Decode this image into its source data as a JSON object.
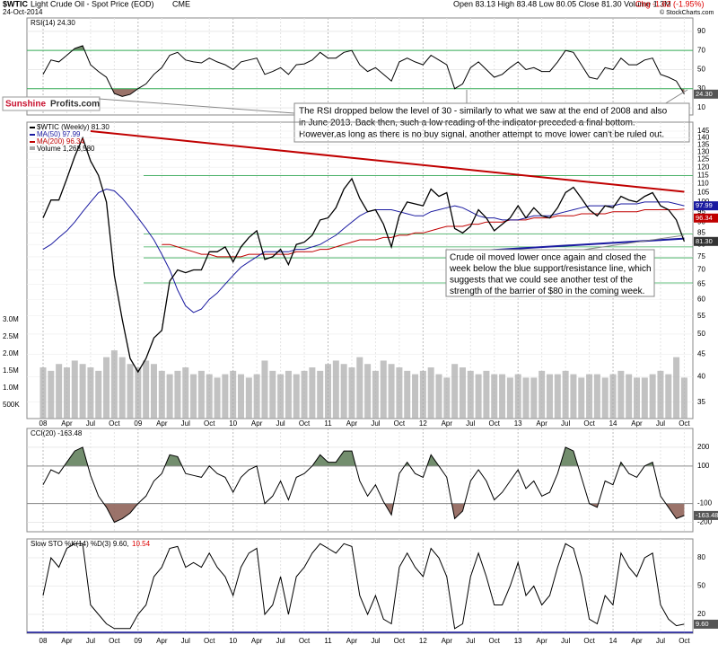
{
  "header": {
    "symbol": "$WTIC",
    "name": "Light Crude Oil - Spot Price (EOD)",
    "exchange": "CME",
    "date": "24-Oct-2014",
    "copyright": "© StockCharts.com",
    "quote": "Open 83.13  High 83.48  Low 80.05  Close 81.30  Volume 1.3M",
    "change": "Chg -1.62 (-1.95%)"
  },
  "logo": {
    "part1": "Sunshine",
    "part2": "Profits.com"
  },
  "x": [
    "2008-01",
    "2008-02",
    "2008-03",
    "2008-04",
    "2008-05",
    "2008-06",
    "2008-07",
    "2008-08",
    "2008-09",
    "2008-10",
    "2008-11",
    "2008-12",
    "2009-01",
    "2009-02",
    "2009-03",
    "2009-04",
    "2009-05",
    "2009-06",
    "2009-07",
    "2009-08",
    "2009-09",
    "2009-10",
    "2009-11",
    "2009-12",
    "2010-01",
    "2010-02",
    "2010-03",
    "2010-04",
    "2010-05",
    "2010-06",
    "2010-07",
    "2010-08",
    "2010-09",
    "2010-10",
    "2010-11",
    "2010-12",
    "2011-01",
    "2011-02",
    "2011-03",
    "2011-04",
    "2011-05",
    "2011-06",
    "2011-07",
    "2011-08",
    "2011-09",
    "2011-10",
    "2011-11",
    "2011-12",
    "2012-01",
    "2012-02",
    "2012-03",
    "2012-04",
    "2012-05",
    "2012-06",
    "2012-07",
    "2012-08",
    "2012-09",
    "2012-10",
    "2012-11",
    "2012-12",
    "2013-01",
    "2013-02",
    "2013-03",
    "2013-04",
    "2013-05",
    "2013-06",
    "2013-07",
    "2013-08",
    "2013-09",
    "2013-10",
    "2013-11",
    "2013-12",
    "2014-01",
    "2014-02",
    "2014-03",
    "2014-04",
    "2014-05",
    "2014-06",
    "2014-07",
    "2014-08",
    "2014-09",
    "2014-10"
  ],
  "x_axis_labels": [
    "08",
    "Apr",
    "Jul",
    "Oct",
    "09",
    "Apr",
    "Jul",
    "Oct",
    "10",
    "Apr",
    "Jul",
    "Oct",
    "11",
    "Apr",
    "Jul",
    "Oct",
    "12",
    "Apr",
    "Jul",
    "Oct",
    "13",
    "Apr",
    "Jul",
    "Oct",
    "14",
    "Apr",
    "Jul",
    "Oct"
  ],
  "rsi": {
    "label": "RSI(14) 24.30",
    "last_label": "24.30",
    "ylim": [
      2.5,
      104
    ],
    "yticks": [
      90,
      70,
      50,
      30,
      10
    ],
    "signal_levels": [
      70,
      30
    ],
    "color": "#000",
    "values": [
      45,
      60,
      58,
      65,
      72,
      75,
      55,
      48,
      42,
      25,
      22,
      24,
      30,
      35,
      45,
      52,
      65,
      68,
      60,
      58,
      57,
      62,
      58,
      55,
      50,
      58,
      60,
      62,
      45,
      48,
      52,
      45,
      55,
      56,
      60,
      68,
      62,
      62,
      68,
      70,
      55,
      48,
      52,
      45,
      38,
      58,
      62,
      58,
      55,
      65,
      60,
      55,
      30,
      35,
      52,
      58,
      50,
      42,
      45,
      52,
      58,
      50,
      52,
      48,
      48,
      58,
      70,
      68,
      55,
      42,
      40,
      52,
      50,
      62,
      55,
      55,
      60,
      62,
      45,
      42,
      38,
      24.3
    ],
    "annotation": [
      "The RSI dropped below the level of 30 - similarly to what we saw at the end of 2008 and also",
      "in June 2013. Back then, such a low reading of the indicator preceded a final bottom.",
      "However,as long as there is no buy signal, another attempt to move lower can't be ruled out."
    ]
  },
  "price": {
    "log_scale": true,
    "ylim": [
      32.1,
      152
    ],
    "yticks": [
      145,
      140,
      135,
      130,
      125,
      120,
      115,
      110,
      105,
      100,
      95,
      90,
      85,
      80,
      75,
      70,
      65,
      60,
      55,
      50,
      45,
      40,
      35
    ],
    "series": [
      {
        "name": "$WTIC (Weekly) 81.30",
        "color": "#000",
        "last_label": "81.30",
        "values": [
          92,
          101,
          101,
          113,
          127,
          140,
          124,
          115,
          100,
          68,
          54,
          44,
          41,
          44,
          49,
          51,
          66,
          70,
          69,
          70,
          70,
          77,
          77,
          79,
          73,
          79,
          83,
          86,
          74,
          75,
          78,
          72,
          80,
          81,
          84,
          91,
          92,
          97,
          107,
          113,
          102,
          95,
          96,
          89,
          79,
          93,
          100,
          99,
          98,
          107,
          103,
          105,
          87,
          85,
          88,
          96,
          92,
          86,
          89,
          92,
          98,
          92,
          97,
          93,
          92,
          97,
          105,
          108,
          102,
          96,
          93,
          98,
          97,
          103,
          101,
          100,
          103,
          105,
          98,
          96,
          91,
          81.3
        ]
      },
      {
        "name": "MA(50) 97.99",
        "color": "#1a1aa0",
        "last_label": "97.99",
        "values": [
          78,
          80,
          83,
          86,
          90,
          95,
          100,
          105,
          107,
          106,
          102,
          97,
          92,
          87,
          82,
          76,
          70,
          63,
          58,
          56,
          57,
          60,
          62,
          65,
          68,
          71,
          73,
          75,
          77,
          77,
          77,
          77,
          78,
          78,
          79,
          80,
          82,
          84,
          87,
          90,
          93,
          95,
          96,
          96,
          96,
          95,
          94,
          93,
          93,
          95,
          96,
          97,
          98,
          97,
          95,
          93,
          92,
          92,
          91,
          91,
          91,
          92,
          93,
          93,
          93,
          94,
          95,
          96,
          97,
          98,
          98,
          98,
          98,
          99,
          99,
          99,
          100,
          100,
          100,
          100,
          99,
          98
        ]
      },
      {
        "name": "MA(200) 96.34",
        "color": "#c00000",
        "last_label": "96.34",
        "values": [
          null,
          null,
          null,
          null,
          null,
          null,
          null,
          null,
          null,
          null,
          null,
          null,
          null,
          null,
          null,
          80,
          80,
          79,
          78,
          77,
          76,
          76,
          75,
          75,
          75,
          75,
          76,
          76,
          76,
          76,
          76,
          76,
          77,
          77,
          77,
          78,
          78,
          79,
          80,
          81,
          82,
          82,
          82,
          83,
          83,
          84,
          84,
          85,
          85,
          86,
          87,
          88,
          88,
          88,
          89,
          89,
          90,
          90,
          90,
          91,
          91,
          91,
          92,
          92,
          92,
          93,
          93,
          93,
          94,
          94,
          94,
          94,
          95,
          95,
          95,
          95,
          96,
          96,
          96,
          96,
          96,
          96.34
        ]
      }
    ],
    "volume": {
      "name": "Volume 1,268,580",
      "color": "#a8a8a8",
      "vlim": [
        0.1,
        8.79
      ],
      "vticks": [
        {
          "value": 3,
          "label": "3.0M"
        },
        {
          "value": 2.5,
          "label": "2.5M"
        },
        {
          "value": 2,
          "label": "2.0M"
        },
        {
          "value": 1.5,
          "label": "1.5M"
        },
        {
          "value": 1,
          "label": "1.0M"
        },
        {
          "value": 0.5,
          "label": "500K"
        }
      ],
      "values": [
        1.6,
        1.5,
        1.7,
        1.6,
        1.8,
        1.7,
        1.6,
        1.5,
        1.9,
        2.1,
        1.9,
        1.7,
        1.6,
        1.8,
        1.7,
        1.5,
        1.4,
        1.5,
        1.6,
        1.4,
        1.5,
        1.4,
        1.3,
        1.4,
        1.5,
        1.4,
        1.3,
        1.4,
        1.8,
        1.5,
        1.4,
        1.5,
        1.4,
        1.5,
        1.6,
        1.5,
        1.7,
        1.8,
        1.7,
        1.6,
        1.9,
        1.7,
        1.5,
        1.8,
        1.7,
        1.6,
        1.5,
        1.4,
        1.5,
        1.6,
        1.4,
        1.3,
        1.7,
        1.6,
        1.5,
        1.4,
        1.5,
        1.4,
        1.4,
        1.3,
        1.4,
        1.3,
        1.3,
        1.5,
        1.4,
        1.4,
        1.5,
        1.4,
        1.3,
        1.4,
        1.4,
        1.3,
        1.4,
        1.5,
        1.4,
        1.3,
        1.3,
        1.4,
        1.5,
        1.4,
        1.9,
        1.3
      ]
    },
    "levels": [
      114.8,
      84.6,
      79.0,
      74.6,
      65.4
    ],
    "levels_color": "#33aa55",
    "trend_lines": [
      {
        "color": "#c00000",
        "points": [
          [
            "2008-07",
            145
          ],
          [
            "2014-10",
            105.5
          ]
        ]
      },
      {
        "color": "#1a1aa0",
        "points": [
          [
            "2012-06",
            77
          ],
          [
            "2014-10",
            82.5
          ]
        ]
      }
    ],
    "annotation": [
      "Crude oil moved lower once again and closed the",
      "week below the blue support/resistance line, which",
      "suggests that we could see another test of the",
      "strength of the barrier of $80 in the coming week."
    ]
  },
  "cci": {
    "label": "CCI(20) -163.48",
    "last_label": "-163.48",
    "ylim": [
      -250,
      300
    ],
    "yticks": [
      200,
      100,
      -100,
      -200
    ],
    "signal_levels": [
      100,
      -100
    ],
    "color": "#000",
    "values": [
      0,
      80,
      60,
      120,
      180,
      200,
      50,
      -60,
      -120,
      -200,
      -180,
      -150,
      -100,
      -60,
      20,
      60,
      160,
      150,
      60,
      50,
      40,
      100,
      60,
      40,
      -40,
      40,
      80,
      100,
      -100,
      -60,
      20,
      -80,
      40,
      60,
      100,
      160,
      120,
      120,
      180,
      180,
      20,
      -60,
      0,
      -90,
      -160,
      60,
      120,
      60,
      40,
      160,
      100,
      40,
      -180,
      -140,
      20,
      80,
      20,
      -80,
      -40,
      20,
      80,
      -20,
      20,
      -60,
      -40,
      60,
      200,
      180,
      40,
      -100,
      -120,
      20,
      0,
      120,
      60,
      40,
      100,
      120,
      -60,
      -120,
      -180,
      -163.48
    ]
  },
  "sto": {
    "label": "Slow STO %K(14) %D(3) 9.60,",
    "d_label": "10.54",
    "last_label": "9.60",
    "ylim": [
      0,
      100
    ],
    "yticks": [
      80,
      50,
      20
    ],
    "color": "#000",
    "values": [
      40,
      80,
      70,
      90,
      95,
      95,
      30,
      20,
      10,
      5,
      5,
      5,
      20,
      30,
      60,
      70,
      90,
      92,
      70,
      75,
      70,
      85,
      70,
      60,
      40,
      70,
      85,
      90,
      20,
      30,
      60,
      20,
      60,
      70,
      85,
      95,
      90,
      85,
      95,
      92,
      40,
      20,
      40,
      15,
      10,
      70,
      85,
      70,
      60,
      90,
      80,
      60,
      5,
      10,
      60,
      85,
      60,
      30,
      30,
      50,
      75,
      40,
      50,
      30,
      40,
      70,
      95,
      90,
      60,
      15,
      10,
      40,
      30,
      85,
      70,
      60,
      80,
      85,
      30,
      15,
      8,
      9.6
    ]
  }
}
